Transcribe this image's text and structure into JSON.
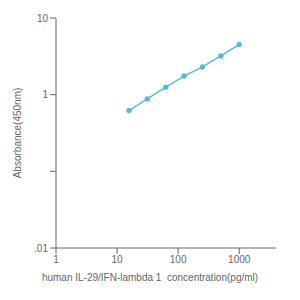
{
  "chart_data": {
    "type": "line",
    "x": [
      15.625,
      31.25,
      62.5,
      125,
      250,
      500,
      1000
    ],
    "values": [
      0.62,
      0.88,
      1.25,
      1.75,
      2.3,
      3.2,
      4.5
    ],
    "color": "#5bb8d4",
    "marker": "circle",
    "xlabel": "human IL-29/IFN-lambda 1  concentration(pg/ml)",
    "ylabel": "Absorbance(450nm)",
    "log": true,
    "grid": false,
    "xlim": [
      1,
      4000
    ],
    "ylim": [
      0.01,
      10
    ],
    "xticks": [
      1,
      10,
      100,
      1000
    ],
    "yticks": [
      {
        "value": 0.01,
        "label": ".01"
      },
      {
        "value": 0.1,
        "label": ""
      },
      1,
      10
    ]
  }
}
